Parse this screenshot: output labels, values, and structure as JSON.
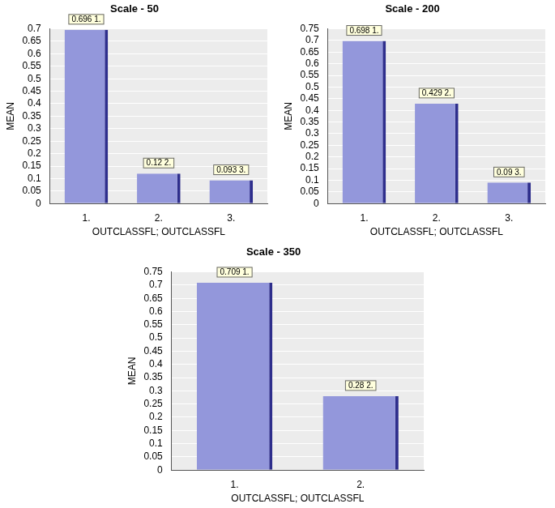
{
  "chart_data": [
    {
      "type": "bar",
      "title": "Scale - 50",
      "x_label": "OUTCLASSFL; OUTCLASSFL",
      "y_label": "MEAN",
      "categories": [
        "1.",
        "2.",
        "3."
      ],
      "values": [
        0.696,
        0.12,
        0.093
      ],
      "value_labels": [
        "0.696 1.",
        "0.12 2.",
        "0.093 3."
      ],
      "data_labels": true,
      "color": "#9397db",
      "ylim": [
        0,
        0.7
      ],
      "yticks": [
        0,
        0.05,
        0.1,
        0.15,
        0.2,
        0.25,
        0.3,
        0.35,
        0.4,
        0.45,
        0.5,
        0.55,
        0.6,
        0.65,
        0.7
      ],
      "grid": true
    },
    {
      "type": "bar",
      "title": "Scale - 200",
      "x_label": "OUTCLASSFL; OUTCLASSFL",
      "y_label": "MEAN",
      "categories": [
        "1.",
        "2.",
        "3."
      ],
      "values": [
        0.698,
        0.429,
        0.09
      ],
      "value_labels": [
        "0.698 1.",
        "0.429 2.",
        "0.09 3."
      ],
      "data_labels": true,
      "color": "#9397db",
      "ylim": [
        0,
        0.75
      ],
      "yticks": [
        0,
        0.05,
        0.1,
        0.15,
        0.2,
        0.25,
        0.3,
        0.35,
        0.4,
        0.45,
        0.5,
        0.55,
        0.6,
        0.65,
        0.7,
        0.75
      ],
      "grid": true
    },
    {
      "type": "bar",
      "title": "Scale - 350",
      "x_label": "OUTCLASSFL; OUTCLASSFL",
      "y_label": "MEAN",
      "categories": [
        "1.",
        "2."
      ],
      "values": [
        0.709,
        0.28
      ],
      "value_labels": [
        "0.709 1.",
        "0.28 2."
      ],
      "data_labels": true,
      "color": "#9397db",
      "ylim": [
        0,
        0.75
      ],
      "yticks": [
        0,
        0.05,
        0.1,
        0.15,
        0.2,
        0.25,
        0.3,
        0.35,
        0.4,
        0.45,
        0.5,
        0.55,
        0.6,
        0.65,
        0.7,
        0.75
      ],
      "grid": true
    }
  ]
}
